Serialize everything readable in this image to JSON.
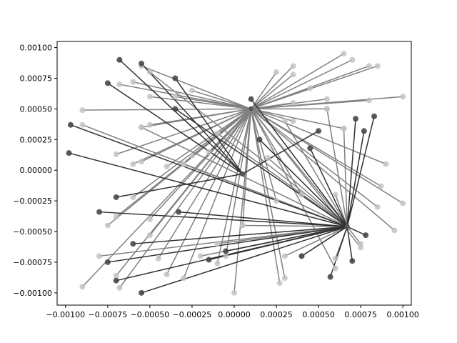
{
  "chart_data": {
    "type": "scatter",
    "title": "",
    "xlabel": "",
    "ylabel": "",
    "xlim": [
      -0.00105,
      0.00105
    ],
    "ylim": [
      -0.0011,
      0.00105
    ],
    "xticks": [
      -0.001,
      -0.00075,
      -0.0005,
      -0.00025,
      0.0,
      0.00025,
      0.0005,
      0.00075,
      0.001
    ],
    "yticks": [
      -0.001,
      -0.00075,
      -0.0005,
      -0.00025,
      0.0,
      0.00025,
      0.0005,
      0.00075,
      0.001
    ],
    "xtick_labels": [
      "−0.00100",
      "−0.00075",
      "−0.00050",
      "−0.00025",
      "0.00000",
      "0.00025",
      "0.00050",
      "0.00075",
      "0.00100"
    ],
    "ytick_labels": [
      "−0.00100",
      "−0.00075",
      "−0.00050",
      "−0.00025",
      "0.00000",
      "0.00025",
      "0.00050",
      "0.00075",
      "0.00100"
    ],
    "hubs": [
      {
        "x": 0.0001,
        "y": 0.0005
      },
      {
        "x": 0.00067,
        "y": -0.00046
      },
      {
        "x": 5e-05,
        "y": -3e-05
      }
    ],
    "gray_edges": [
      {
        "hub": 0,
        "x": -0.00055,
        "y": 0.00035
      },
      {
        "hub": 0,
        "x": -0.0009,
        "y": 0.00049
      },
      {
        "hub": 0,
        "x": -0.0005,
        "y": 0.0006
      },
      {
        "hub": 0,
        "x": -0.0006,
        "y": 0.00072
      },
      {
        "hub": 0,
        "x": -0.00068,
        "y": 0.0007
      },
      {
        "hub": 0,
        "x": -0.00055,
        "y": 0.00085
      },
      {
        "hub": 0,
        "x": -0.00035,
        "y": 0.0006
      },
      {
        "hub": 0,
        "x": -0.00025,
        "y": 0.00065
      },
      {
        "hub": 0,
        "x": -0.0005,
        "y": 0.00037
      },
      {
        "hub": 0,
        "x": -0.0007,
        "y": 0.00013
      },
      {
        "hub": 0,
        "x": -0.0006,
        "y": 5e-05
      },
      {
        "hub": 0,
        "x": -0.00055,
        "y": 7e-05
      },
      {
        "hub": 0,
        "x": -0.0004,
        "y": 3e-05
      },
      {
        "hub": 0,
        "x": -0.0003,
        "y": 5e-05
      },
      {
        "hub": 0,
        "x": -0.00025,
        "y": 0.00012
      },
      {
        "hub": 0,
        "x": -0.00015,
        "y": 0.00015
      },
      {
        "hub": 0,
        "x": -0.0006,
        "y": -0.00022
      },
      {
        "hub": 0,
        "x": -0.00075,
        "y": -0.00045
      },
      {
        "hub": 0,
        "x": -0.0007,
        "y": -0.00038
      },
      {
        "hub": 0,
        "x": -0.0005,
        "y": -0.0004
      },
      {
        "hub": 0,
        "x": -0.0005,
        "y": -0.00053
      },
      {
        "hub": 0,
        "x": -0.00045,
        "y": -0.00072
      },
      {
        "hub": 0,
        "x": -0.0004,
        "y": -0.00085
      },
      {
        "hub": 0,
        "x": -0.0003,
        "y": -0.00088
      },
      {
        "hub": 0,
        "x": -0.0009,
        "y": -0.00095
      },
      {
        "hub": 0,
        "x": -0.00068,
        "y": -0.00096
      },
      {
        "hub": 0,
        "x": -0.0007,
        "y": -0.00086
      },
      {
        "hub": 0,
        "x": -0.0001,
        "y": -0.00076
      },
      {
        "hub": 0,
        "x": -5e-05,
        "y": -0.0007
      },
      {
        "hub": 0,
        "x": 5e-05,
        "y": -0.00045
      },
      {
        "hub": 0,
        "x": 0.0,
        "y": -0.001
      },
      {
        "hub": 0,
        "x": 0.00025,
        "y": 0.0008
      },
      {
        "hub": 0,
        "x": 0.00035,
        "y": 0.00085
      },
      {
        "hub": 0,
        "x": 0.00035,
        "y": 0.00078
      },
      {
        "hub": 0,
        "x": 0.00045,
        "y": 0.00067
      },
      {
        "hub": 0,
        "x": 0.00035,
        "y": 0.00055
      },
      {
        "hub": 0,
        "x": 0.00055,
        "y": 0.00058
      },
      {
        "hub": 0,
        "x": 0.00065,
        "y": 0.00095
      },
      {
        "hub": 0,
        "x": 0.0007,
        "y": 0.0009
      },
      {
        "hub": 0,
        "x": 0.0008,
        "y": 0.00085
      },
      {
        "hub": 0,
        "x": 0.00085,
        "y": 0.00085
      },
      {
        "hub": 0,
        "x": 0.0008,
        "y": 0.00057
      },
      {
        "hub": 0,
        "x": 0.001,
        "y": 0.0006
      },
      {
        "hub": 0,
        "x": 0.00055,
        "y": 0.0005
      },
      {
        "hub": 0,
        "x": 0.00035,
        "y": 0.0004
      },
      {
        "hub": 0,
        "x": 0.00065,
        "y": 0.00034
      },
      {
        "hub": 0,
        "x": 0.0009,
        "y": 5e-05
      },
      {
        "hub": 0,
        "x": 0.00087,
        "y": -0.00013
      },
      {
        "hub": 0,
        "x": 0.001,
        "y": -0.00027
      },
      {
        "hub": 0,
        "x": 0.00085,
        "y": -0.0003
      },
      {
        "hub": 0,
        "x": 0.0004,
        "y": -0.0002
      },
      {
        "hub": 0,
        "x": 0.00025,
        "y": -0.00025
      },
      {
        "hub": 0,
        "x": 0.0003,
        "y": -0.00088
      },
      {
        "hub": 0,
        "x": 0.00027,
        "y": -0.00092
      },
      {
        "hub": 0,
        "x": 0.0006,
        "y": -0.0008
      },
      {
        "hub": 0,
        "x": 0.00095,
        "y": -0.00049
      },
      {
        "hub": 0,
        "x": 0.00075,
        "y": -0.00063
      },
      {
        "hub": 1,
        "x": -0.00055,
        "y": 0.00035
      },
      {
        "hub": 1,
        "x": -0.0001,
        "y": 0.0003
      },
      {
        "hub": 1,
        "x": 0.0001,
        "y": 0.0005
      },
      {
        "hub": 1,
        "x": -0.0003,
        "y": 5e-05
      },
      {
        "hub": 1,
        "x": -0.0009,
        "y": 0.00037
      },
      {
        "hub": 1,
        "x": -0.0001,
        "y": -0.0006
      },
      {
        "hub": 1,
        "x": -0.0002,
        "y": -0.0007
      },
      {
        "hub": 1,
        "x": -0.0008,
        "y": -0.0007
      },
      {
        "hub": 1,
        "x": 5e-05,
        "y": -0.00045
      },
      {
        "hub": 1,
        "x": 0.0003,
        "y": -0.0007
      },
      {
        "hub": 1,
        "x": 0.0004,
        "y": -0.0007
      },
      {
        "hub": 1,
        "x": 0.0006,
        "y": -0.00072
      },
      {
        "hub": 1,
        "x": 0.0003,
        "y": 0.0004
      },
      {
        "hub": 1,
        "x": 0.00055,
        "y": 0.0005
      },
      {
        "hub": 1,
        "x": 0.0006,
        "y": -0.0002
      },
      {
        "hub": 1,
        "x": 0.00075,
        "y": -0.0006
      },
      {
        "hub": 1,
        "x": 0.00065,
        "y": 0.00034
      },
      {
        "hub": 1,
        "x": -0.0005,
        "y": 0.0008
      },
      {
        "hub": 1,
        "x": 0.0002,
        "y": 0.0001
      }
    ],
    "dark_edges": [
      {
        "hub": 2,
        "x": -0.00068,
        "y": 0.0009
      },
      {
        "hub": 2,
        "x": -0.00055,
        "y": 0.00087
      },
      {
        "hub": 2,
        "x": -0.00035,
        "y": 0.00075
      },
      {
        "hub": 2,
        "x": -0.0007,
        "y": -0.00022
      },
      {
        "hub": 2,
        "x": 0.0005,
        "y": 0.00032
      },
      {
        "hub": 2,
        "x": -0.00075,
        "y": 0.00071
      },
      {
        "hub": 1,
        "x": -0.00097,
        "y": 0.00037
      },
      {
        "hub": 1,
        "x": -0.00098,
        "y": 0.00014
      },
      {
        "hub": 1,
        "x": -0.0008,
        "y": -0.00034
      },
      {
        "hub": 1,
        "x": -0.0006,
        "y": -0.0006
      },
      {
        "hub": 1,
        "x": -0.00075,
        "y": -0.00075
      },
      {
        "hub": 1,
        "x": -0.0007,
        "y": -0.0009
      },
      {
        "hub": 1,
        "x": -0.00055,
        "y": -0.001
      },
      {
        "hub": 1,
        "x": -0.00033,
        "y": -0.00034
      },
      {
        "hub": 1,
        "x": -0.00015,
        "y": -0.00073
      },
      {
        "hub": 1,
        "x": -5e-05,
        "y": -0.00066
      },
      {
        "hub": 1,
        "x": -0.00035,
        "y": 0.0005
      },
      {
        "hub": 1,
        "x": 0.00015,
        "y": 0.00025
      },
      {
        "hub": 1,
        "x": 0.00045,
        "y": 0.00018
      },
      {
        "hub": 1,
        "x": 0.0004,
        "y": -0.0007
      },
      {
        "hub": 1,
        "x": 0.00057,
        "y": -0.00087
      },
      {
        "hub": 1,
        "x": 0.0007,
        "y": -0.00074
      },
      {
        "hub": 1,
        "x": 0.00072,
        "y": 0.00042
      },
      {
        "hub": 1,
        "x": 0.00077,
        "y": 0.00032
      },
      {
        "hub": 1,
        "x": 0.00083,
        "y": 0.00044
      },
      {
        "hub": 1,
        "x": 0.00078,
        "y": -0.00053
      },
      {
        "hub": 1,
        "x": 0.0001,
        "y": 0.00058
      }
    ]
  }
}
